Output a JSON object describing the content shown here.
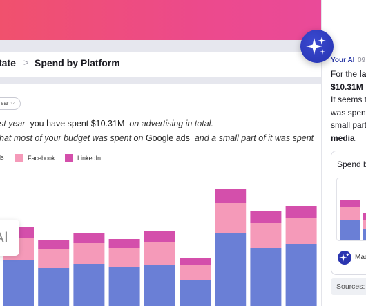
{
  "breadcrumb": {
    "previous": "tate",
    "separator": ">",
    "current": "Spend by Platform"
  },
  "filter_chip": {
    "label": "ear"
  },
  "summary": {
    "line1_a": "st year",
    "line1_b": "you have spent $10.31M",
    "line1_c": "on advertising in total.",
    "line2_a": "hat most of your budget was spent on",
    "line2_b": "Google ads",
    "line2_c": "and a small part of it was spent"
  },
  "legend": [
    {
      "label": "ds",
      "color": "#6a7fd6"
    },
    {
      "label": "Facebook",
      "color": "#f59ab9"
    },
    {
      "label": "LinkedIn",
      "color": "#d44fab"
    }
  ],
  "ai_card_text": "AI",
  "chart_data": {
    "type": "bar",
    "stacked": true,
    "categories": [
      "",
      "",
      "",
      "",
      "",
      "",
      "",
      "",
      ""
    ],
    "series": [
      {
        "name": "ds",
        "color": "#6a7fd6",
        "values": [
          67,
          55,
          61,
          57,
          60,
          37,
          106,
          84,
          90
        ]
      },
      {
        "name": "Facebook",
        "color": "#f59ab9",
        "values": [
          32,
          27,
          30,
          27,
          32,
          22,
          43,
          36,
          37
        ]
      },
      {
        "name": "LinkedIn",
        "color": "#d44fab",
        "values": [
          15,
          13,
          15,
          13,
          17,
          10,
          21,
          17,
          18
        ]
      }
    ],
    "ylim": [
      0,
      170
    ],
    "grid": false
  },
  "assistant": {
    "name": "Your AI",
    "time": "09",
    "msg_line1_a": "For the ",
    "msg_line1_b": "las",
    "msg_line2": "$10.31M",
    "msg_line3": "It seems t",
    "msg_line4": "was spent",
    "msg_line5": "small part",
    "msg_line6": "media",
    "msg_line6_tail": ".",
    "card_title": "Spend b",
    "card_footer": "Mac",
    "sources_label": "Sources:"
  }
}
